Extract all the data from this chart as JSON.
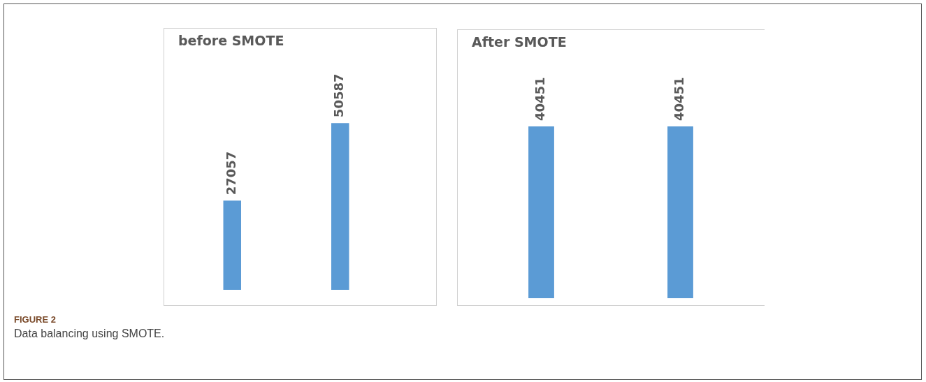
{
  "chart_data": [
    {
      "type": "bar",
      "title": "before SMOTE",
      "categories": [
        null,
        null
      ],
      "values": [
        27057,
        50587
      ],
      "color": "#5b9bd5",
      "data_labels": true,
      "annotations": [
        "FIGURE 2",
        "Data balancing using SMOTE."
      ]
    },
    {
      "type": "bar",
      "title": "After SMOTE",
      "categories": [
        null,
        null
      ],
      "values": [
        40451,
        40451
      ],
      "color": "#5b9bd5",
      "data_labels": true
    }
  ]
}
